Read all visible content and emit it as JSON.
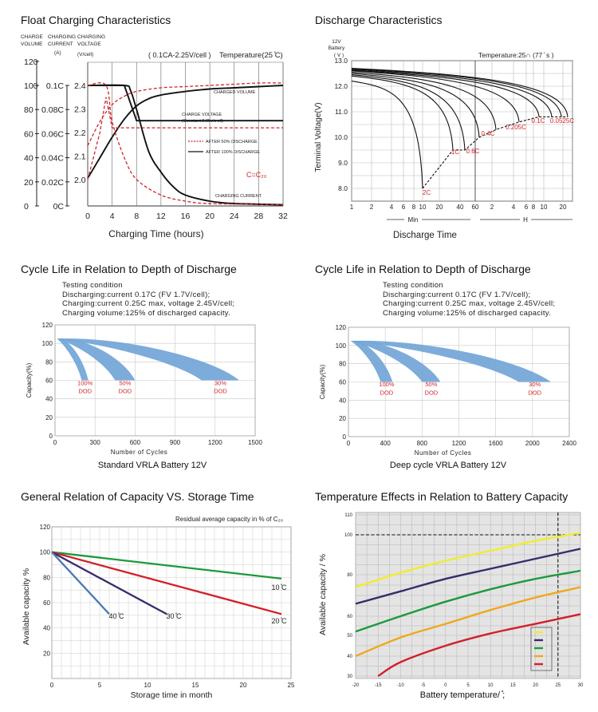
{
  "panels": {
    "float": {
      "title": "Float Charging Characteristics"
    },
    "discharge": {
      "title": "Discharge Characteristics"
    },
    "cycle_std": {
      "title": "Cycle Life in Relation to Depth of Discharge"
    },
    "cycle_deep": {
      "title": "Cycle Life in Relation to Depth of Discharge"
    },
    "storage": {
      "title": "General Relation of Capacity VS. Storage Time"
    },
    "temp": {
      "title": "Temperature Effects in Relation to Battery Capacity"
    }
  },
  "colors": {
    "blue_band": "#6fa3d6",
    "red_label": "#d0252a",
    "dash_red": "#d0252a",
    "green": "#1b9a3b",
    "red": "#d31f2a",
    "navy": "#3a2a6b",
    "steel": "#4a78b5",
    "yellow": "#f2ec2a",
    "orange": "#f0a81c",
    "grid": "#c8c8c8",
    "temp_bg": "#e4e4e4"
  },
  "chart_data": [
    {
      "id": "float",
      "type": "line",
      "title": "Float Charging Characteristics",
      "xlabel": "Charging Time  (hours)",
      "xticks": [
        "0",
        "4",
        "8",
        "12",
        "16",
        "20",
        "24",
        "28",
        "32"
      ],
      "xlim": [
        0,
        32
      ],
      "axis_titles": [
        "CHARGE VOLUME",
        "CHARGING CURRENT (A)",
        "CHARGING VOLTAGE (V/cell)"
      ],
      "volume_ticks": [
        "0",
        "20",
        "40",
        "60",
        "80",
        "100",
        "120"
      ],
      "current_ticks": [
        "0C",
        "0.02C",
        "0.04C",
        "0.06C",
        "0.08C",
        "0.1C"
      ],
      "voltage_ticks": [
        "2.0",
        "2.1",
        "2.2",
        "2.3",
        "2.4"
      ],
      "header_note": "( 0.1CA-2.25V/cell )",
      "temperature": "Temperature(25 ̊C)",
      "annotations": {
        "charged_volume": "CHARGED VOLUME",
        "charge_voltage_1": "CHARGE VOLTAGE",
        "charge_voltage_2": "(Constant 2.25v/c ell)",
        "after50": "AFTER 50% DISCHARGE",
        "after100": "AFTER 100% DISCHARGE",
        "c_label": "C=C₂₀",
        "charging_current": "CHARGING CURRENT"
      },
      "series": [
        {
          "name": "AFTER 100% DISCHARGE",
          "style": "solid",
          "curve": "charged volume",
          "x": [
            0,
            2,
            4,
            6,
            8,
            10,
            12,
            16,
            20,
            24,
            28,
            32
          ],
          "y": [
            23,
            40,
            57,
            72,
            83,
            89,
            92,
            95,
            97,
            98,
            99,
            100
          ]
        },
        {
          "name": "AFTER 50% DISCHARGE",
          "style": "dashed",
          "curve": "charged volume",
          "x": [
            0,
            2,
            4,
            6,
            8,
            12,
            16,
            20,
            24,
            28,
            32
          ],
          "y": [
            50,
            70,
            84,
            91,
            95,
            98,
            99,
            100,
            101,
            102,
            102
          ]
        },
        {
          "name": "AFTER 100% DISCHARGE",
          "style": "solid",
          "curve": "charge voltage",
          "x": [
            0,
            6,
            8,
            32
          ],
          "y": [
            2.4,
            2.4,
            2.25,
            2.25
          ]
        },
        {
          "name": "AFTER 50% DISCHARGE",
          "style": "dashed",
          "curve": "charge voltage",
          "x": [
            0,
            2,
            3,
            4,
            32
          ],
          "y": [
            2.0,
            2.2,
            2.35,
            2.22,
            2.22
          ]
        },
        {
          "name": "AFTER 100% DISCHARGE",
          "style": "solid",
          "curve": "charging current",
          "x": [
            0,
            6,
            7,
            8,
            10,
            12,
            14,
            16,
            20,
            24,
            32
          ],
          "y": [
            0.1,
            0.1,
            0.096,
            0.08,
            0.045,
            0.028,
            0.016,
            0.009,
            0.004,
            0.002,
            0.001
          ]
        },
        {
          "name": "AFTER 50% DISCHARGE",
          "style": "dashed",
          "curve": "charging current",
          "x": [
            0,
            3,
            4,
            6,
            8,
            12,
            16,
            20,
            32
          ],
          "y": [
            0.1,
            0.1,
            0.07,
            0.04,
            0.022,
            0.009,
            0.004,
            0.002,
            0.001
          ]
        }
      ]
    },
    {
      "id": "discharge",
      "type": "line",
      "title": "Discharge Characteristics",
      "ylabel": "Terminal Voltage(V)",
      "y_axis_top": [
        "12V",
        "Battery",
        "( V )"
      ],
      "xlabel": "Discharge Time",
      "temperature": "Temperature:25∩ (77 ̊ s )",
      "ylim": [
        7.5,
        13.0
      ],
      "yticks": [
        "8.0",
        "9.0",
        "10.0",
        "11.0",
        "12.0",
        "13.0"
      ],
      "xticks": [
        "1",
        "2",
        "4",
        "6",
        "8",
        "10",
        "20",
        "40",
        "60",
        "2",
        "4",
        "6",
        "8",
        "10",
        "20"
      ],
      "xunits": [
        "Min",
        "H"
      ],
      "rate_labels": [
        "2C",
        "1C",
        "0.6C",
        "0.4C",
        "0.205C",
        "0.1C",
        "0.0525C"
      ],
      "curves_start_v": [
        12.2,
        12.4,
        12.45,
        12.5,
        12.55,
        12.6,
        12.62,
        12.65,
        12.68,
        12.7
      ],
      "end_points_v": [
        8.0,
        9.5,
        9.5,
        10.0,
        10.3,
        10.6,
        10.8,
        10.8,
        10.8,
        10.8
      ]
    },
    {
      "id": "cycle_std",
      "type": "area",
      "title": "Standard VRLA Battery 12V",
      "testing": [
        "Testing condition",
        "Discharging:current 0.17C (FV 1.7V/cell);",
        "Charging:current 0.25C max, voltage 2.45V/cell;",
        "Charging volume:125% of discharged capacity."
      ],
      "ylabel": "Capacity(%)",
      "xlabel": "Number of Cycles",
      "xlim": [
        0,
        1500
      ],
      "ylim": [
        0,
        120
      ],
      "xticks": [
        "0",
        "300",
        "600",
        "900",
        "1200",
        "1500"
      ],
      "yticks": [
        "0",
        "20",
        "40",
        "60",
        "80",
        "100",
        "120"
      ],
      "series": [
        {
          "name": "100% DOD",
          "end_cycles": [
            200,
            250
          ]
        },
        {
          "name": "50% DOD",
          "end_cycles": [
            450,
            600
          ]
        },
        {
          "name": "30% DOD",
          "end_cycles": [
            1100,
            1380
          ]
        }
      ]
    },
    {
      "id": "cycle_deep",
      "type": "area",
      "title": "Deep cycle VRLA Battery 12V",
      "testing": [
        "Testing condition",
        "Discharging:current 0.17C (FV 1.7V/cell);",
        "Charging:current 0.25C max, voltage 2.45V/cell;",
        "Charging volume:125% of discharged capacity."
      ],
      "ylabel": "Capacity(%)",
      "xlabel": "Number of Cycles",
      "xlim": [
        0,
        2400
      ],
      "ylim": [
        0,
        120
      ],
      "xticks": [
        "0",
        "400",
        "800",
        "1200",
        "1600",
        "2000",
        "2400"
      ],
      "yticks": [
        "0",
        "20",
        "40",
        "60",
        "80",
        "100",
        "120"
      ],
      "series": [
        {
          "name": "100% DOD",
          "end_cycles": [
            350,
            480
          ]
        },
        {
          "name": "50% DOD",
          "end_cycles": [
            800,
            1000
          ]
        },
        {
          "name": "30% DOD",
          "end_cycles": [
            1850,
            2200
          ]
        }
      ]
    },
    {
      "id": "storage",
      "type": "line",
      "title": "General Relation of Capacity VS. Storage Time",
      "note": "Residual average capacity in % of C₂₀",
      "xlabel": "Storage time in month",
      "ylabel": "Available capacity %",
      "xlim": [
        0,
        25
      ],
      "ylim": [
        0,
        120
      ],
      "xticks": [
        "0",
        "5",
        "10",
        "15",
        "20",
        "25"
      ],
      "yticks": [
        "20",
        "40",
        "60",
        "80",
        "100",
        "120"
      ],
      "series": [
        {
          "name": "10 ̊C",
          "x": [
            0,
            24
          ],
          "y": [
            100,
            79
          ]
        },
        {
          "name": "20 ̊C",
          "x": [
            0,
            24
          ],
          "y": [
            100,
            51
          ]
        },
        {
          "name": "30 ̊C",
          "x": [
            0,
            12
          ],
          "y": [
            100,
            51
          ]
        },
        {
          "name": "40 ̊C",
          "x": [
            0,
            6
          ],
          "y": [
            100,
            51
          ]
        }
      ]
    },
    {
      "id": "temp",
      "type": "line",
      "title": "Temperature Effects in Relation to Battery Capacity",
      "xlabel": "Battery temperature/ ̊;",
      "ylabel": "Available capacity / %",
      "xlim": [
        -20,
        30
      ],
      "ylim": [
        30,
        110
      ],
      "xticks": [
        "-20",
        "-15",
        "-10",
        "-5",
        "0",
        "5",
        "10",
        "15",
        "20",
        "25",
        "30"
      ],
      "yticks": [
        "30",
        "40",
        "50",
        "60",
        "80",
        "100",
        "110"
      ],
      "reference": {
        "x": 25,
        "y": 100
      },
      "series": [
        {
          "color": "yellow",
          "x": [
            -20,
            -10,
            0,
            10,
            20,
            30
          ],
          "y": [
            74,
            81,
            87,
            92,
            97,
            101
          ]
        },
        {
          "color": "navy",
          "x": [
            -20,
            -10,
            0,
            10,
            20,
            30
          ],
          "y": [
            66,
            72,
            78,
            83,
            88,
            93
          ]
        },
        {
          "color": "green",
          "x": [
            -20,
            -10,
            0,
            10,
            20,
            30
          ],
          "y": [
            52,
            60,
            67,
            73,
            78,
            82
          ]
        },
        {
          "color": "orange",
          "x": [
            -20,
            -10,
            0,
            10,
            20,
            30
          ],
          "y": [
            40,
            49,
            56,
            63,
            69,
            74
          ]
        },
        {
          "color": "red",
          "x": [
            -15,
            -10,
            0,
            10,
            20,
            30
          ],
          "y": [
            30,
            37,
            45,
            51,
            56,
            61
          ]
        }
      ]
    }
  ]
}
